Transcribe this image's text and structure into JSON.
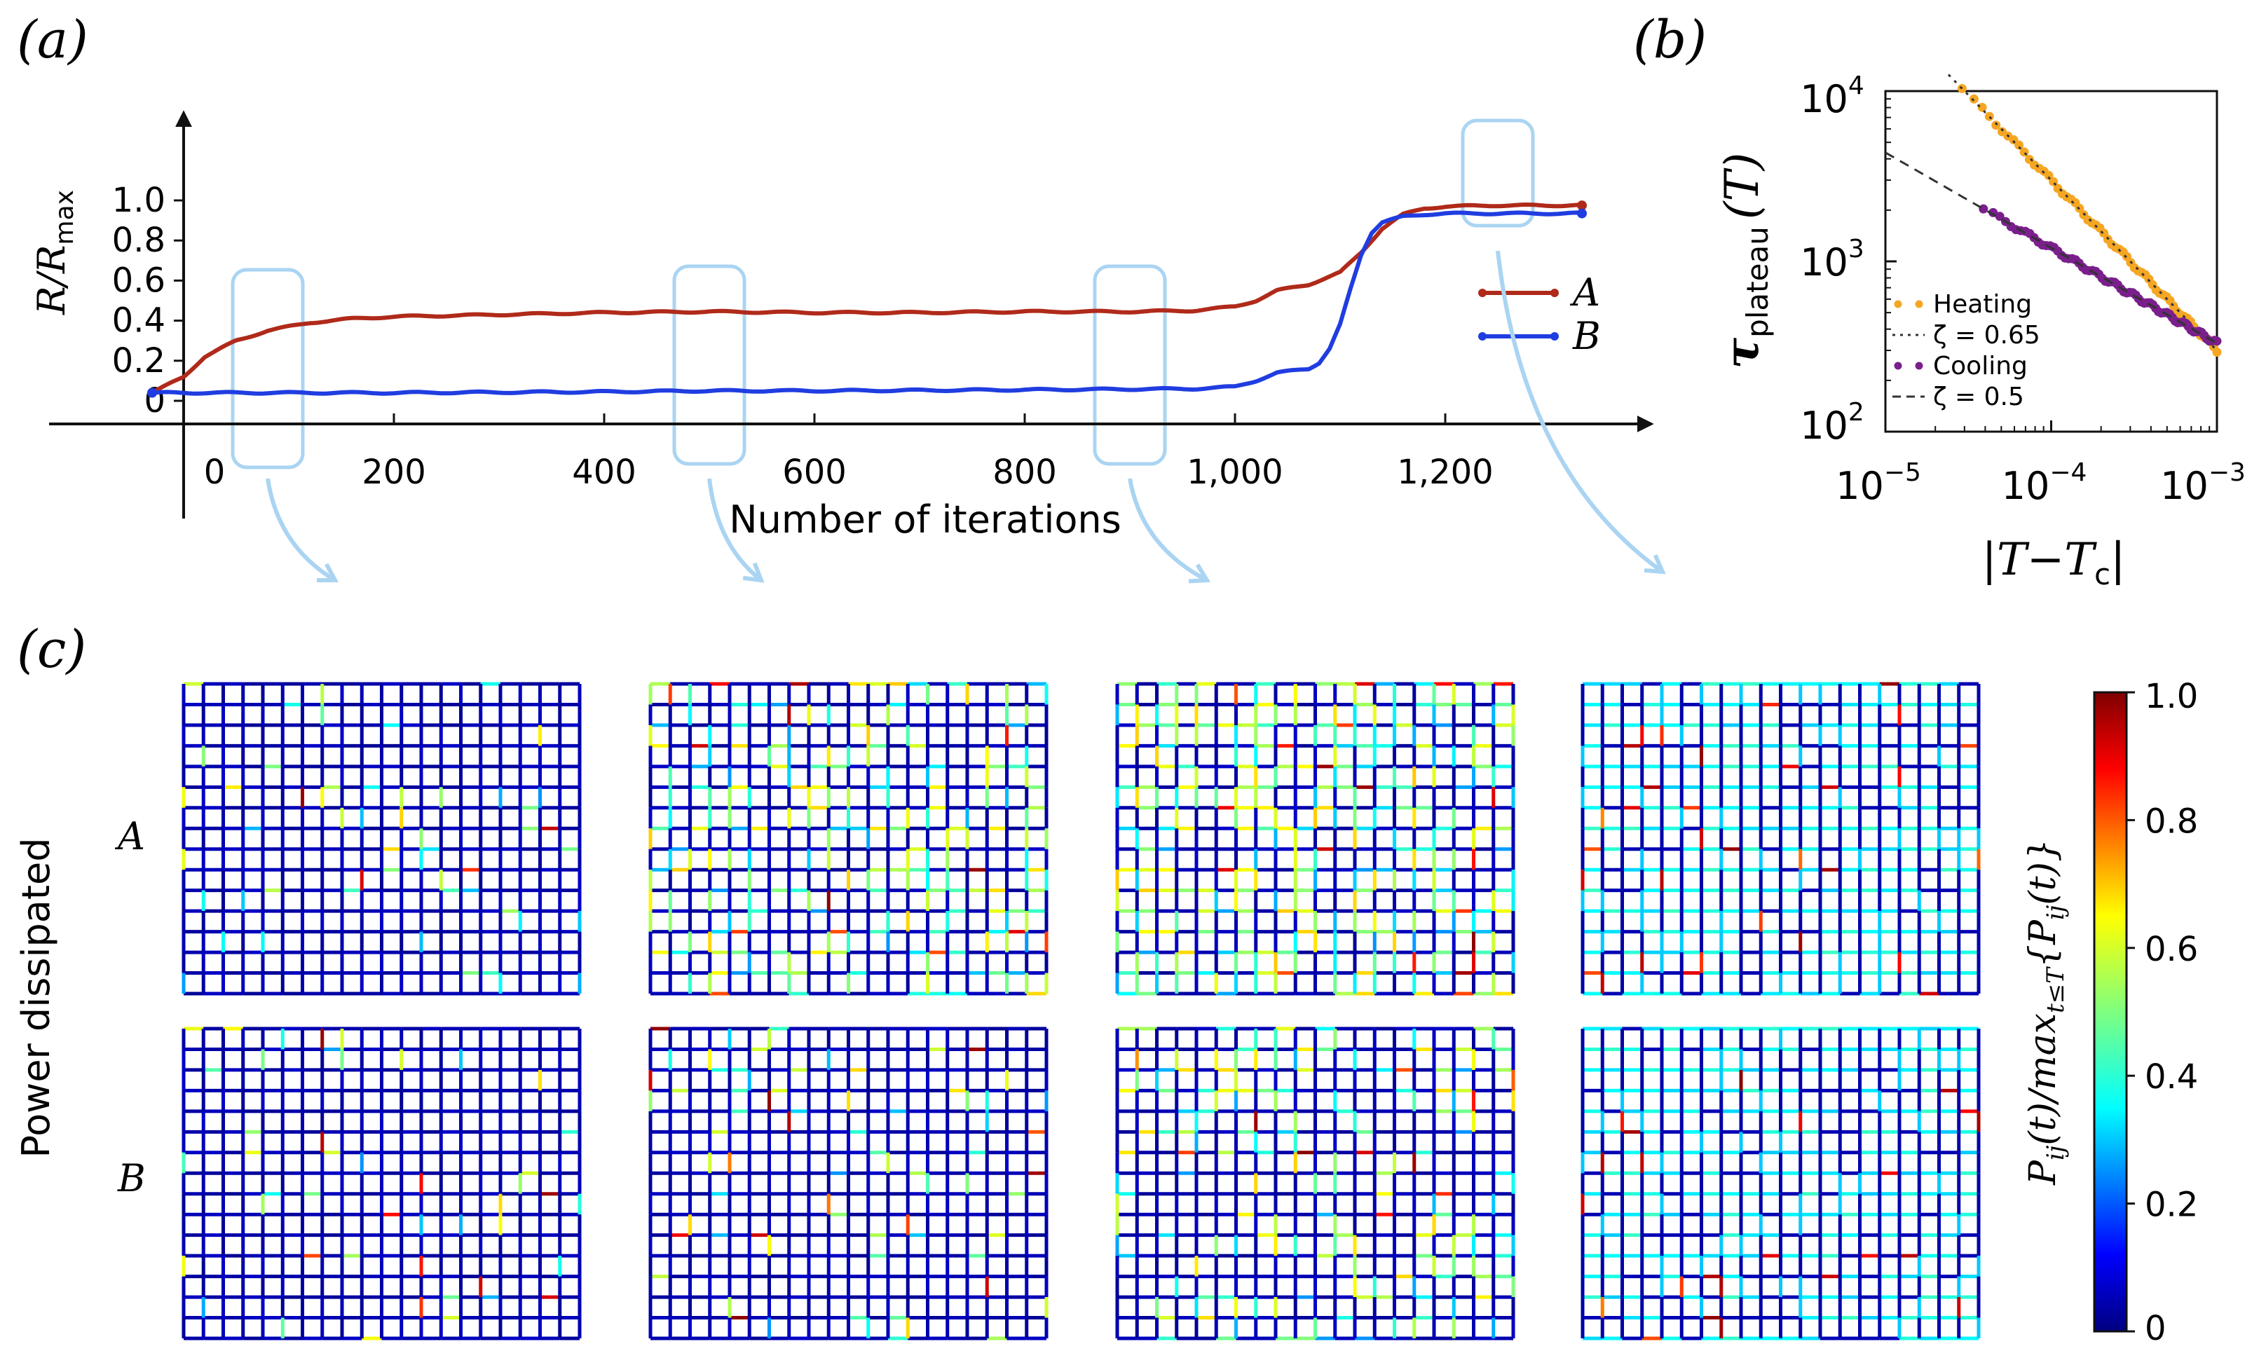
{
  "panels": {
    "a_label": "(a)",
    "b_label": "(b)",
    "c_label": "(c)"
  },
  "arrow_targets": [
    80,
    500,
    900,
    1250
  ],
  "chart_data": [
    {
      "id": "a",
      "type": "line",
      "xlabel": "Number of iterations",
      "ylabel": "R/R",
      "ylabel_sub": "max",
      "xlim": [
        -30,
        1340
      ],
      "ylim": [
        -0.08,
        1.2
      ],
      "xticks": [
        0,
        200,
        400,
        600,
        800,
        1000,
        1200
      ],
      "xtick_labels": [
        "0",
        "200",
        "400",
        "600",
        "800",
        "1,000",
        "1,200"
      ],
      "yticks": [
        0,
        0.2,
        0.4,
        0.6,
        0.8,
        1.0
      ],
      "ytick_labels": [
        "0",
        "0.2",
        "0.4",
        "0.6",
        "0.8",
        "1.0"
      ],
      "legend_position": "right",
      "series": [
        {
          "name": "A",
          "color": "#b02a1a",
          "x": [
            -30,
            0,
            20,
            50,
            80,
            120,
            160,
            200,
            300,
            400,
            500,
            600,
            700,
            800,
            900,
            960,
            1000,
            1020,
            1040,
            1070,
            1100,
            1120,
            1140,
            1160,
            1180,
            1200,
            1250,
            1300,
            1330
          ],
          "y": [
            0.04,
            0.12,
            0.22,
            0.3,
            0.35,
            0.39,
            0.41,
            0.42,
            0.43,
            0.44,
            0.445,
            0.44,
            0.44,
            0.445,
            0.445,
            0.45,
            0.47,
            0.5,
            0.55,
            0.58,
            0.64,
            0.74,
            0.86,
            0.93,
            0.96,
            0.97,
            0.975,
            0.975,
            0.975
          ]
        },
        {
          "name": "B",
          "color": "#1f3de0",
          "x": [
            -30,
            0,
            200,
            400,
            500,
            600,
            800,
            960,
            1000,
            1020,
            1040,
            1070,
            1080,
            1090,
            1100,
            1110,
            1120,
            1130,
            1140,
            1160,
            1180,
            1200,
            1250,
            1300,
            1330
          ],
          "y": [
            0.04,
            0.04,
            0.04,
            0.045,
            0.05,
            0.05,
            0.055,
            0.06,
            0.07,
            0.1,
            0.14,
            0.16,
            0.19,
            0.26,
            0.38,
            0.56,
            0.73,
            0.84,
            0.89,
            0.92,
            0.93,
            0.935,
            0.935,
            0.935,
            0.935
          ]
        }
      ]
    },
    {
      "id": "b",
      "type": "scatter",
      "scale": "log-log",
      "xlabel": "|T−T",
      "xlabel_sub": "c",
      "xlabel_end": "|",
      "ylabel": "τ",
      "ylabel_sub": "plateau",
      "ylabel_end": "(T)",
      "xlim": [
        1e-05,
        0.001
      ],
      "ylim": [
        100,
        10000
      ],
      "xtick_labels": [
        [
          "10",
          "−5"
        ],
        [
          "10",
          "−4"
        ],
        [
          "10",
          "−3"
        ]
      ],
      "ytick_labels": [
        [
          "10",
          "2"
        ],
        [
          "10",
          "3"
        ],
        [
          "10",
          "4"
        ]
      ],
      "legend_position": "lower-left",
      "series": [
        {
          "name": "Heating",
          "color": "#f5a623",
          "kind": "points",
          "x_range": [
            2.9e-05,
            0.001
          ],
          "y_at_1e-4": 3000,
          "exponent": 1.0,
          "n": 60
        },
        {
          "name": "ζ = 0.65",
          "color": "#333333",
          "kind": "dotted-fit",
          "x_range": [
            2.4e-05,
            0.001
          ],
          "y_at_1e-4": 3000,
          "exponent": 1.0
        },
        {
          "name": "Cooling",
          "color": "#7a1f8c",
          "kind": "points",
          "x_range": [
            3.9e-05,
            0.001
          ],
          "y_at_1e-4": 1200,
          "exponent": 0.56,
          "n": 70
        },
        {
          "name": "ζ = 0.5",
          "color": "#333333",
          "kind": "dashed-fit",
          "x_range": [
            1e-05,
            0.001
          ],
          "y_at_1e-4": 1200,
          "exponent": 0.56
        }
      ]
    },
    {
      "id": "c",
      "type": "heatmap",
      "row_title": "Power dissipated",
      "row_labels": [
        "A",
        "B"
      ],
      "grid": {
        "cols": 20,
        "rows": 15
      },
      "colorbar": {
        "label": "P",
        "label_sub": "ij",
        "label_mid": "(t)/max",
        "label_sub2": "t≤T",
        "label_end": "{P",
        "label_sub3": "ij",
        "label_end2": "(t)}",
        "range": [
          0,
          1.0
        ],
        "ticks": [
          0,
          0.2,
          0.4,
          0.6,
          0.8,
          1.0
        ],
        "tick_labels": [
          "0",
          "0.2",
          "0.4",
          "0.6",
          "0.8",
          "1.0"
        ]
      },
      "snapshot_mean_power": {
        "A": [
          0.03,
          0.14,
          0.18,
          0.32
        ],
        "B": [
          0.02,
          0.04,
          0.12,
          0.38
        ]
      }
    }
  ]
}
